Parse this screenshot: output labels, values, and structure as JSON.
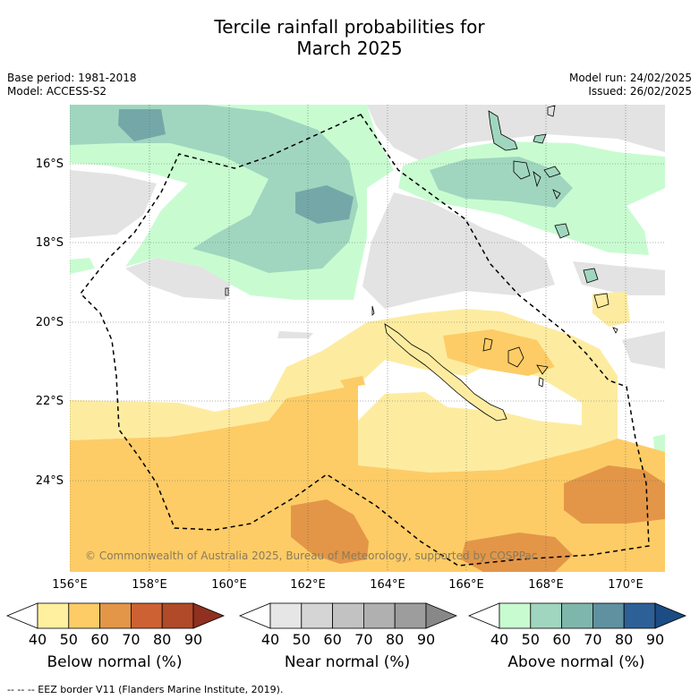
{
  "title_line1": "Tercile rainfall probabilities for",
  "title_line2": "March 2025",
  "base_period": "Base period: 1981-2018",
  "model": "Model: ACCESS-S2",
  "model_run": "Model run: 24/02/2025",
  "issued": "Issued: 26/02/2025",
  "copyright": "© Commonwealth of Australia 2025, Bureau of Meteorology, supported by COSPPac",
  "lat_labels": [
    "16°S",
    "18°S",
    "20°S",
    "22°S",
    "24°S"
  ],
  "lon_labels": [
    "156°E",
    "158°E",
    "160°E",
    "162°E",
    "164°E",
    "166°E",
    "168°E",
    "170°E"
  ],
  "colorbars": {
    "below": {
      "title": "Below normal (%)",
      "ticks": [
        "40",
        "50",
        "60",
        "70",
        "80",
        "90"
      ],
      "colors": [
        "#ffffff",
        "#fff0a0",
        "#fdcc66",
        "#e39648",
        "#cd6133",
        "#b04a28",
        "#8f3020"
      ]
    },
    "near": {
      "title": "Near normal (%)",
      "ticks": [
        "40",
        "50",
        "60",
        "70",
        "80",
        "90"
      ],
      "colors": [
        "#ffffff",
        "#e6e6e6",
        "#d5d5d5",
        "#c2c2c2",
        "#b0b0b0",
        "#9d9d9d",
        "#888888"
      ]
    },
    "above": {
      "title": "Above normal (%)",
      "ticks": [
        "40",
        "50",
        "60",
        "70",
        "80",
        "90"
      ],
      "colors": [
        "#ffffff",
        "#c8fcd0",
        "#a0d6bf",
        "#7fb6ac",
        "#5f91a0",
        "#2d6096",
        "#1b4c84"
      ]
    }
  },
  "eez_note": "--  --  -- EEZ border V11 (Flanders Marine Institute, 2019).",
  "map_colors": {
    "ocean": "#ffffff",
    "grey": "#e3e3e3",
    "green": "#c8fcd0",
    "teal": "#a0d6bf",
    "teal_dark": "#74a8a8",
    "yellow": "#fdeca0",
    "orange": "#fdcc66",
    "orange_dark": "#e39648",
    "land_stroke": "#000000"
  }
}
